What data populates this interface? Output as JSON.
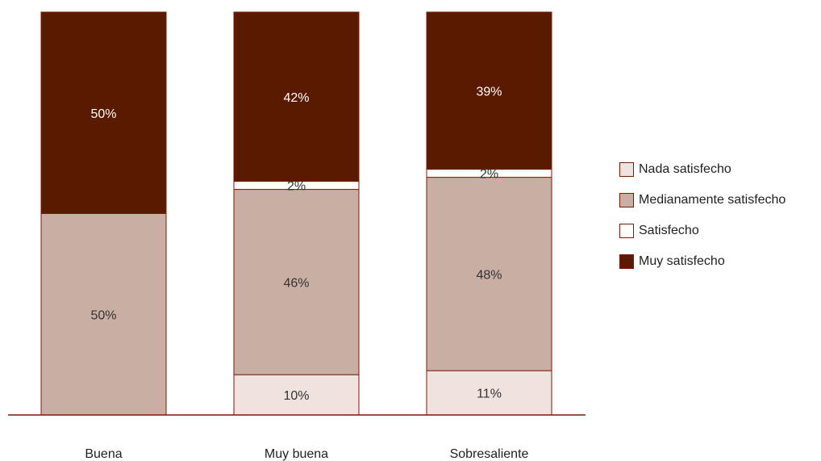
{
  "chart_data": {
    "type": "bar",
    "stacked": true,
    "orientation": "vertical",
    "categories": [
      "Buena",
      "Muy buena",
      "Sobresaliente"
    ],
    "series": [
      {
        "name": "Nada satisfecho",
        "color": "#efe2df",
        "values": [
          0,
          10,
          11
        ],
        "labels": [
          "",
          "10%",
          "11%"
        ]
      },
      {
        "name": "Medianamente satisfecho",
        "color": "#c9aea3",
        "values": [
          50,
          46,
          48
        ],
        "labels": [
          "50%",
          "46%",
          "48%"
        ]
      },
      {
        "name": "Satisfecho",
        "color": "#ffffff",
        "values": [
          0,
          2,
          2
        ],
        "labels": [
          "",
          "2%",
          "2%"
        ]
      },
      {
        "name": "Muy satisfecho",
        "color": "#5a1a00",
        "values": [
          50,
          42,
          39
        ],
        "labels": [
          "50%",
          "42%",
          "39%"
        ]
      }
    ],
    "ylim": [
      0,
      100
    ],
    "legend_position": "right",
    "grid": false,
    "baseline_color": "#7a1b00"
  }
}
